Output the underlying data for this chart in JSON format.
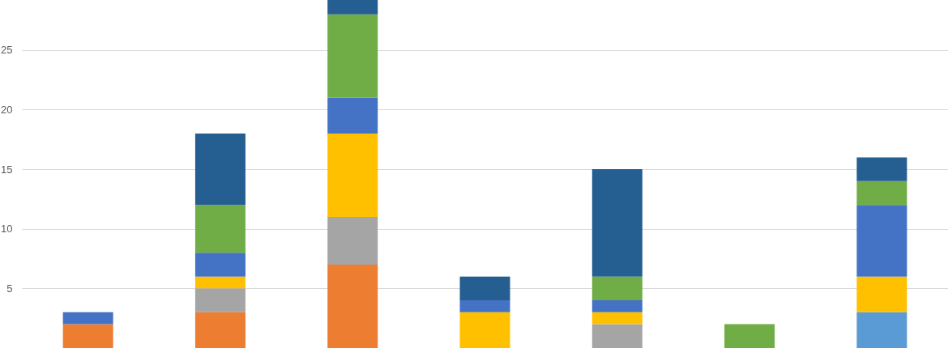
{
  "chart_data": {
    "type": "bar",
    "stacked": true,
    "categories": [
      null,
      null,
      null,
      null,
      null,
      null,
      null
    ],
    "series": [
      {
        "color": "#5b9bd5",
        "values": [
          null,
          null,
          null,
          null,
          null,
          null,
          3
        ]
      },
      {
        "color": "#ed7d31",
        "values": [
          2,
          3,
          7,
          null,
          null,
          null,
          null
        ]
      },
      {
        "color": "#a5a5a5",
        "values": [
          null,
          2,
          4,
          null,
          2,
          null,
          null
        ]
      },
      {
        "color": "#ffc000",
        "values": [
          null,
          1,
          7,
          3,
          1,
          null,
          3
        ]
      },
      {
        "color": "#4472c4",
        "values": [
          1,
          2,
          3,
          1,
          1,
          null,
          6
        ]
      },
      {
        "color": "#70ad47",
        "values": [
          null,
          4,
          7,
          null,
          2,
          2,
          2
        ]
      },
      {
        "color": "#255e91",
        "values": [
          null,
          6,
          1.2,
          2,
          9,
          null,
          2
        ]
      }
    ],
    "ylim": [
      0,
      29.2
    ],
    "yticks": [
      5,
      10,
      15,
      20,
      25
    ],
    "grid": "y",
    "legend": false,
    "tick_labels": "y"
  }
}
